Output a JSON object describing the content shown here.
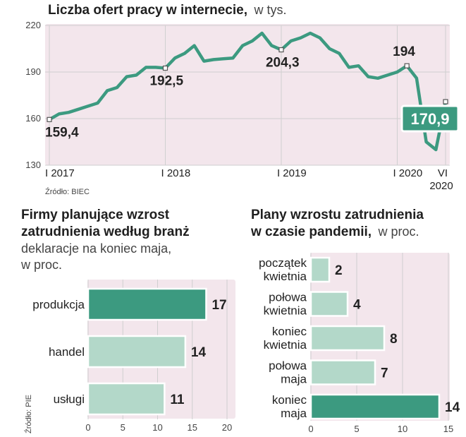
{
  "colors": {
    "plot_bg": "#f3e6ec",
    "line": "#3c9a80",
    "bar_light": "#b3d8c9",
    "bar_dark": "#3c9a80",
    "grid": "#cfcfcf"
  },
  "chart_data": [
    {
      "type": "line",
      "title": "Liczba ofert pracy w internecie,",
      "subtitle": "w tys.",
      "source": "Źródło: BIEC",
      "ylim": [
        130,
        220
      ],
      "yticks": [
        130,
        160,
        190,
        220
      ],
      "ytick_labels": [
        "130",
        "160",
        "190",
        "220"
      ],
      "x_ticks": [
        {
          "index": 0,
          "label": "I 2017",
          "label2": ""
        },
        {
          "index": 12,
          "label": "I 2018",
          "label2": ""
        },
        {
          "index": 24,
          "label": "I 2019",
          "label2": ""
        },
        {
          "index": 36,
          "label": "I 2020",
          "label2": ""
        },
        {
          "index": 41,
          "label": "VI",
          "label2": "2020"
        }
      ],
      "values": [
        159.4,
        163,
        164,
        166,
        168,
        170,
        178,
        180,
        187,
        188,
        193,
        193,
        192.5,
        199,
        202,
        207,
        197,
        198,
        198.5,
        199,
        207,
        210,
        215,
        207,
        204.3,
        210,
        212,
        215,
        212,
        205,
        202,
        193,
        194,
        187,
        186,
        188,
        190,
        194,
        186,
        145,
        140,
        170.9
      ],
      "annotations": [
        {
          "index": 0,
          "label": "159,4",
          "highlight": false
        },
        {
          "index": 12,
          "label": "192,5",
          "highlight": false
        },
        {
          "index": 24,
          "label": "204,3",
          "highlight": false
        },
        {
          "index": 37,
          "label": "194",
          "highlight": false
        },
        {
          "index": 41,
          "label": "170,9",
          "highlight": true
        }
      ]
    },
    {
      "type": "bar",
      "orientation": "horizontal",
      "title_lines": [
        "Firmy planujące wzrost",
        "zatrudnienia według branż"
      ],
      "subtitle_lines": [
        "deklaracje na koniec maja,",
        "w proc."
      ],
      "source": "Źródło: PIE",
      "categories": [
        "produkcja",
        "handel",
        "usługi"
      ],
      "values": [
        17,
        14,
        11
      ],
      "highlight_index": 0,
      "value_labels": [
        "17",
        "14",
        "11"
      ],
      "xlim": [
        0,
        20
      ],
      "xticks": [
        0,
        5,
        10,
        15,
        20
      ],
      "xtick_labels": [
        "0",
        "5",
        "10",
        "15",
        "20"
      ]
    },
    {
      "type": "bar",
      "orientation": "horizontal",
      "title_lines": [
        "Plany wzrostu zatrudnienia",
        "w czasie pandemii,"
      ],
      "subtitle_suffix": "w proc.",
      "categories": [
        [
          "początek",
          "kwietnia"
        ],
        [
          "połowa",
          "kwietnia"
        ],
        [
          "koniec",
          "kwietnia"
        ],
        [
          "połowa",
          "maja"
        ],
        [
          "koniec",
          "maja"
        ]
      ],
      "values": [
        2,
        4,
        8,
        7,
        14
      ],
      "highlight_index": 4,
      "value_labels": [
        "2",
        "4",
        "8",
        "7",
        "14"
      ],
      "xlim": [
        0,
        15
      ],
      "xticks": [
        0,
        5,
        10,
        15
      ],
      "xtick_labels": [
        "0",
        "5",
        "10",
        "15"
      ]
    }
  ]
}
